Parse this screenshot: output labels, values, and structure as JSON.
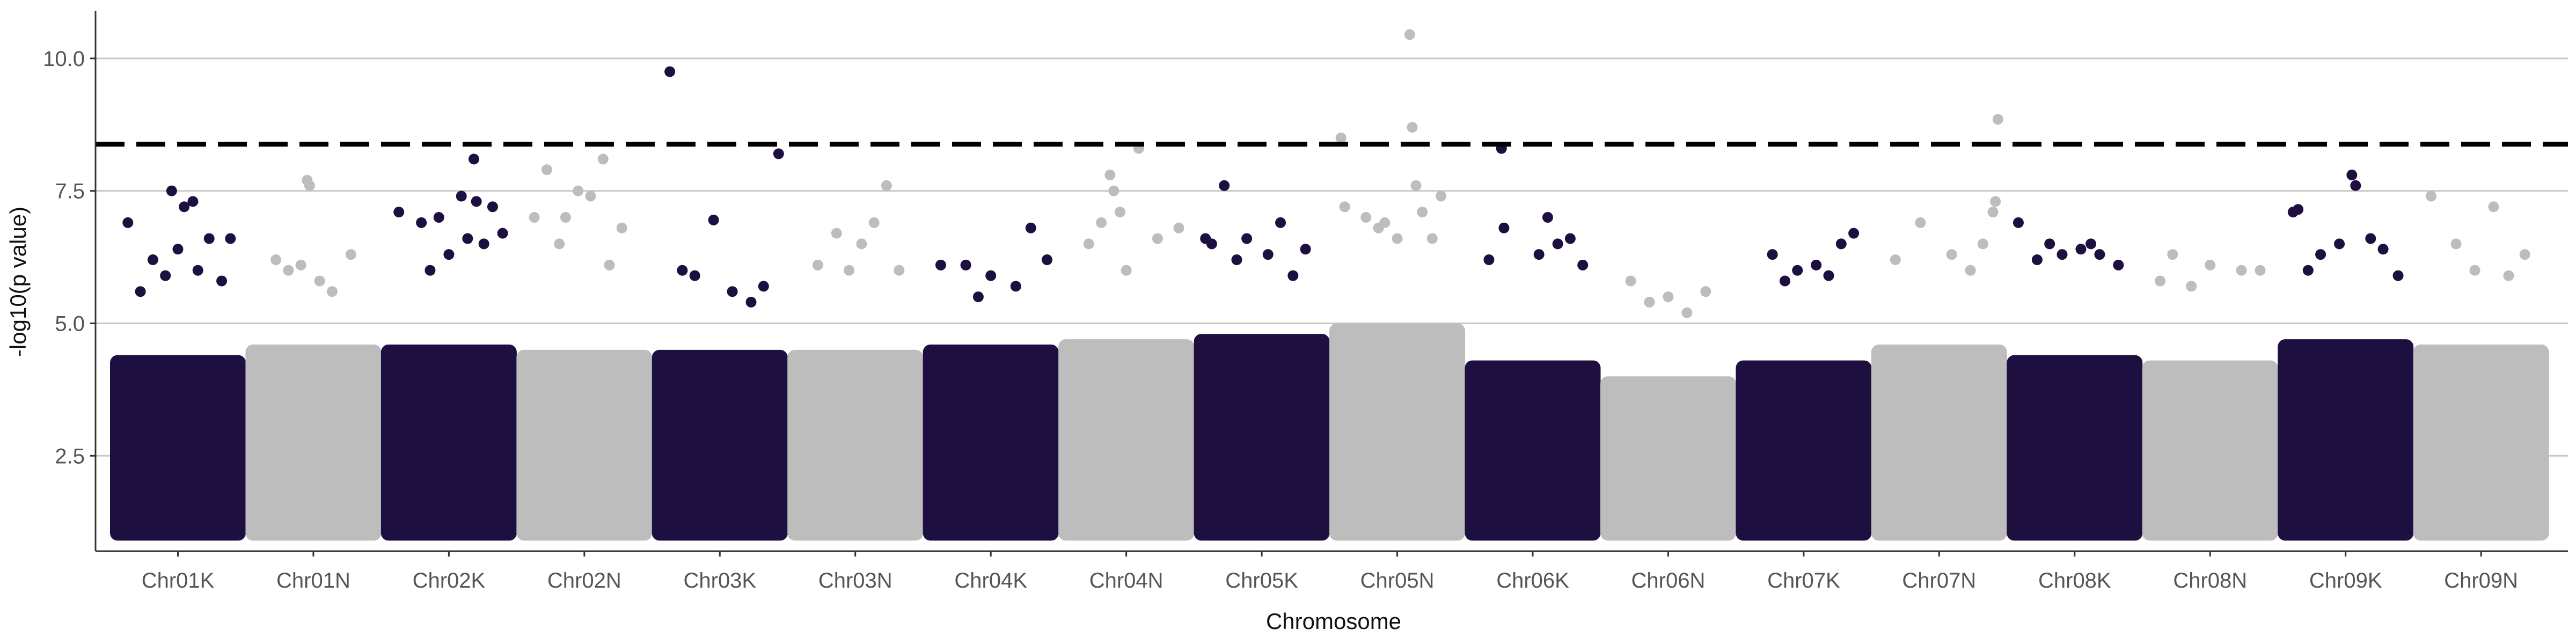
{
  "chart_data": {
    "type": "scatter",
    "subtype": "manhattan",
    "title": "",
    "xlabel": "Chromosome",
    "ylabel": "-log10(p value)",
    "ylim": [
      0.7,
      10.9
    ],
    "yticks": [
      2.5,
      5.0,
      7.5,
      10.0
    ],
    "ytick_labels": [
      "2.5",
      "5.0",
      "7.5",
      "10.0"
    ],
    "grid": {
      "horizontal_major": true,
      "vertical": false
    },
    "legend": "none",
    "threshold": 8.38,
    "threshold_style": "dashed",
    "colors": {
      "odd": "#1d1040",
      "even": "#bdbdbd",
      "threshold": "#000000",
      "grid": "#c8c8c8",
      "axis": "#333333"
    },
    "categories": [
      "Chr01K",
      "Chr01N",
      "Chr02K",
      "Chr02N",
      "Chr03K",
      "Chr03N",
      "Chr04K",
      "Chr04N",
      "Chr05K",
      "Chr05N",
      "Chr06K",
      "Chr06N",
      "Chr07K",
      "Chr07N",
      "Chr08K",
      "Chr08N",
      "Chr09K",
      "Chr09N"
    ],
    "dense_max": [
      4.4,
      4.6,
      4.6,
      4.5,
      4.5,
      4.5,
      4.6,
      4.7,
      4.8,
      5.0,
      4.3,
      4.0,
      4.3,
      4.6,
      4.4,
      4.3,
      4.7,
      4.6
    ],
    "series": [
      {
        "name": "Chr01K",
        "points": [
          [
            0.1,
            6.9
          ],
          [
            0.3,
            6.2
          ],
          [
            0.45,
            7.5
          ],
          [
            0.55,
            7.2
          ],
          [
            0.62,
            7.3
          ],
          [
            0.75,
            6.6
          ],
          [
            0.85,
            5.8
          ],
          [
            0.92,
            6.6
          ],
          [
            0.2,
            5.6
          ],
          [
            0.5,
            6.4
          ],
          [
            0.66,
            6.0
          ],
          [
            0.4,
            5.9
          ]
        ]
      },
      {
        "name": "Chr01N",
        "points": [
          [
            0.45,
            7.7
          ],
          [
            0.47,
            7.6
          ],
          [
            0.2,
            6.2
          ],
          [
            0.3,
            6.0
          ],
          [
            0.55,
            5.8
          ],
          [
            0.8,
            6.3
          ],
          [
            0.65,
            5.6
          ],
          [
            0.4,
            6.1
          ]
        ]
      },
      {
        "name": "Chr02K",
        "points": [
          [
            0.1,
            7.1
          ],
          [
            0.28,
            6.9
          ],
          [
            0.42,
            7.0
          ],
          [
            0.6,
            7.4
          ],
          [
            0.7,
            8.1
          ],
          [
            0.72,
            7.3
          ],
          [
            0.85,
            7.2
          ],
          [
            0.78,
            6.5
          ],
          [
            0.5,
            6.3
          ],
          [
            0.93,
            6.7
          ],
          [
            0.65,
            6.6
          ],
          [
            0.35,
            6.0
          ]
        ]
      },
      {
        "name": "Chr02N",
        "points": [
          [
            0.1,
            7.0
          ],
          [
            0.2,
            7.9
          ],
          [
            0.35,
            7.0
          ],
          [
            0.45,
            7.5
          ],
          [
            0.55,
            7.4
          ],
          [
            0.65,
            8.1
          ],
          [
            0.8,
            6.8
          ],
          [
            0.3,
            6.5
          ],
          [
            0.7,
            6.1
          ]
        ]
      },
      {
        "name": "Chr03K",
        "points": [
          [
            0.1,
            9.75
          ],
          [
            0.45,
            6.95
          ],
          [
            0.97,
            8.2
          ],
          [
            0.2,
            6.0
          ],
          [
            0.3,
            5.9
          ],
          [
            0.6,
            5.6
          ],
          [
            0.85,
            5.7
          ],
          [
            0.75,
            5.4
          ]
        ]
      },
      {
        "name": "Chr03N",
        "points": [
          [
            0.35,
            6.7
          ],
          [
            0.55,
            6.5
          ],
          [
            0.65,
            6.9
          ],
          [
            0.75,
            7.6
          ],
          [
            0.2,
            6.1
          ],
          [
            0.45,
            6.0
          ],
          [
            0.85,
            6.0
          ]
        ]
      },
      {
        "name": "Chr04K",
        "points": [
          [
            0.1,
            6.1
          ],
          [
            0.3,
            6.1
          ],
          [
            0.5,
            5.9
          ],
          [
            0.82,
            6.8
          ],
          [
            0.95,
            6.2
          ],
          [
            0.7,
            5.7
          ],
          [
            0.4,
            5.5
          ]
        ]
      },
      {
        "name": "Chr04N",
        "points": [
          [
            0.2,
            6.5
          ],
          [
            0.3,
            6.9
          ],
          [
            0.37,
            7.8
          ],
          [
            0.4,
            7.5
          ],
          [
            0.6,
            8.3
          ],
          [
            0.75,
            6.6
          ],
          [
            0.92,
            6.8
          ],
          [
            0.5,
            6.0
          ],
          [
            0.45,
            7.1
          ]
        ]
      },
      {
        "name": "Chr05K",
        "points": [
          [
            0.05,
            6.6
          ],
          [
            0.1,
            6.5
          ],
          [
            0.2,
            7.6
          ],
          [
            0.38,
            6.6
          ],
          [
            0.55,
            6.3
          ],
          [
            0.65,
            6.9
          ],
          [
            0.85,
            6.4
          ],
          [
            0.3,
            6.2
          ],
          [
            0.75,
            5.9
          ]
        ]
      },
      {
        "name": "Chr05N",
        "points": [
          [
            0.05,
            8.5
          ],
          [
            0.08,
            7.2
          ],
          [
            0.25,
            7.0
          ],
          [
            0.6,
            10.45
          ],
          [
            0.62,
            8.7
          ],
          [
            0.65,
            7.6
          ],
          [
            0.7,
            7.1
          ],
          [
            0.85,
            7.4
          ],
          [
            0.4,
            6.9
          ],
          [
            0.5,
            6.6
          ],
          [
            0.35,
            6.8
          ],
          [
            0.78,
            6.6
          ]
        ]
      },
      {
        "name": "Chr06K",
        "points": [
          [
            0.25,
            8.3
          ],
          [
            0.27,
            6.8
          ],
          [
            0.15,
            6.2
          ],
          [
            0.55,
            6.3
          ],
          [
            0.62,
            7.0
          ],
          [
            0.8,
            6.6
          ],
          [
            0.7,
            6.5
          ],
          [
            0.9,
            6.1
          ]
        ]
      },
      {
        "name": "Chr06N",
        "points": [
          [
            0.2,
            5.8
          ],
          [
            0.5,
            5.5
          ],
          [
            0.8,
            5.6
          ],
          [
            0.35,
            5.4
          ],
          [
            0.65,
            5.2
          ]
        ]
      },
      {
        "name": "Chr07K",
        "points": [
          [
            0.25,
            6.3
          ],
          [
            0.45,
            6.0
          ],
          [
            0.6,
            6.1
          ],
          [
            0.8,
            6.5
          ],
          [
            0.9,
            6.7
          ],
          [
            0.7,
            5.9
          ],
          [
            0.35,
            5.8
          ]
        ]
      },
      {
        "name": "Chr07N",
        "points": [
          [
            0.35,
            6.9
          ],
          [
            0.95,
            7.3
          ],
          [
            0.97,
            8.85
          ],
          [
            0.93,
            7.1
          ],
          [
            0.15,
            6.2
          ],
          [
            0.6,
            6.3
          ],
          [
            0.75,
            6.0
          ],
          [
            0.85,
            6.5
          ]
        ]
      },
      {
        "name": "Chr08K",
        "points": [
          [
            0.05,
            6.9
          ],
          [
            0.3,
            6.5
          ],
          [
            0.4,
            6.3
          ],
          [
            0.55,
            6.4
          ],
          [
            0.7,
            6.3
          ],
          [
            0.85,
            6.1
          ],
          [
            0.2,
            6.2
          ],
          [
            0.63,
            6.5
          ]
        ]
      },
      {
        "name": "Chr08N",
        "points": [
          [
            0.1,
            5.8
          ],
          [
            0.2,
            6.3
          ],
          [
            0.5,
            6.1
          ],
          [
            0.75,
            6.0
          ],
          [
            0.9,
            6.0
          ],
          [
            0.35,
            5.7
          ]
        ]
      },
      {
        "name": "Chr09K",
        "points": [
          [
            0.08,
            7.1
          ],
          [
            0.12,
            7.15
          ],
          [
            0.3,
            6.3
          ],
          [
            0.45,
            6.5
          ],
          [
            0.55,
            7.8
          ],
          [
            0.58,
            7.6
          ],
          [
            0.7,
            6.6
          ],
          [
            0.8,
            6.4
          ],
          [
            0.92,
            5.9
          ],
          [
            0.2,
            6.0
          ]
        ]
      },
      {
        "name": "Chr09N",
        "points": [
          [
            0.1,
            7.4
          ],
          [
            0.3,
            6.5
          ],
          [
            0.6,
            7.2
          ],
          [
            0.85,
            6.3
          ],
          [
            0.45,
            6.0
          ],
          [
            0.72,
            5.9
          ]
        ]
      }
    ]
  }
}
